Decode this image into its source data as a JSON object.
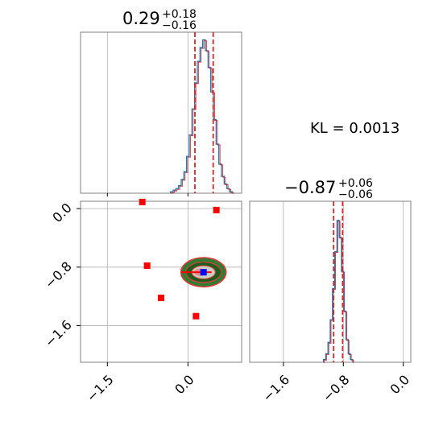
{
  "chart_data": {
    "type": "corner",
    "annotation": "KL = 0.0013",
    "parameters": [
      {
        "median": "0.29",
        "plus": "+0.18",
        "minus": "−0.16",
        "quantiles": [
          0.13,
          0.29,
          0.47
        ]
      },
      {
        "median": "−0.87",
        "plus": "+0.06",
        "minus": "−0.06",
        "quantiles": [
          -0.93,
          -0.87,
          -0.81
        ]
      }
    ],
    "hist_x": {
      "xlim": [
        -2.0,
        1.0
      ],
      "bins": [
        [
          -0.3,
          1
        ],
        [
          -0.25,
          2
        ],
        [
          -0.2,
          3
        ],
        [
          -0.15,
          5
        ],
        [
          -0.1,
          9
        ],
        [
          -0.05,
          14
        ],
        [
          0.0,
          24
        ],
        [
          0.05,
          38
        ],
        [
          0.1,
          55
        ],
        [
          0.15,
          72
        ],
        [
          0.2,
          86
        ],
        [
          0.25,
          95
        ],
        [
          0.3,
          100
        ],
        [
          0.35,
          93
        ],
        [
          0.4,
          82
        ],
        [
          0.45,
          66
        ],
        [
          0.5,
          48
        ],
        [
          0.55,
          32
        ],
        [
          0.6,
          19
        ],
        [
          0.65,
          11
        ],
        [
          0.7,
          6
        ],
        [
          0.75,
          3
        ],
        [
          0.8,
          1
        ]
      ]
    },
    "hist_y": {
      "xlim": [
        -2.05,
        0.1
      ],
      "ticks": [
        -1.6,
        -0.8,
        0.0
      ],
      "tick_labels": [
        "−1.6",
        "−0.8",
        "0.0"
      ],
      "bins": [
        [
          -1.05,
          2
        ],
        [
          -1.02,
          6
        ],
        [
          -0.99,
          14
        ],
        [
          -0.96,
          30
        ],
        [
          -0.93,
          52
        ],
        [
          -0.9,
          78
        ],
        [
          -0.87,
          100
        ],
        [
          -0.84,
          88
        ],
        [
          -0.81,
          64
        ],
        [
          -0.78,
          36
        ],
        [
          -0.75,
          16
        ],
        [
          -0.72,
          6
        ],
        [
          -0.69,
          2
        ]
      ]
    },
    "scatter": {
      "xlim": [
        -2.0,
        1.0
      ],
      "ylim": [
        -2.1,
        0.1
      ],
      "x_ticks": [
        -1.5,
        0.0
      ],
      "x_tick_labels": [
        "−1.5",
        "0.0"
      ],
      "y_ticks": [
        0.0,
        -0.8,
        -1.6
      ],
      "y_tick_labels": [
        "0.0",
        "−0.8",
        "−1.6"
      ],
      "red_points": [
        [
          -0.85,
          0.09
        ],
        [
          0.53,
          -0.02
        ],
        [
          -0.76,
          -0.78
        ],
        [
          -0.5,
          -1.22
        ],
        [
          0.15,
          -1.47
        ]
      ],
      "blue_point": [
        0.29,
        -0.87
      ],
      "contour_center": [
        0.29,
        -0.87
      ],
      "contour_radii": [
        [
          0.42,
          0.2
        ],
        [
          0.33,
          0.14
        ],
        [
          0.22,
          0.09
        ],
        [
          0.12,
          0.05
        ]
      ]
    }
  },
  "colors": {
    "hist_step": "#1f77b4",
    "hist_outline": "#d62728",
    "quantile_line": "#d62728",
    "grid": "#b0b0b0",
    "contour_green": "#2e7d32",
    "contour_red": "#e53935",
    "point_red": "#ff0000",
    "point_blue": "#0000ff"
  }
}
